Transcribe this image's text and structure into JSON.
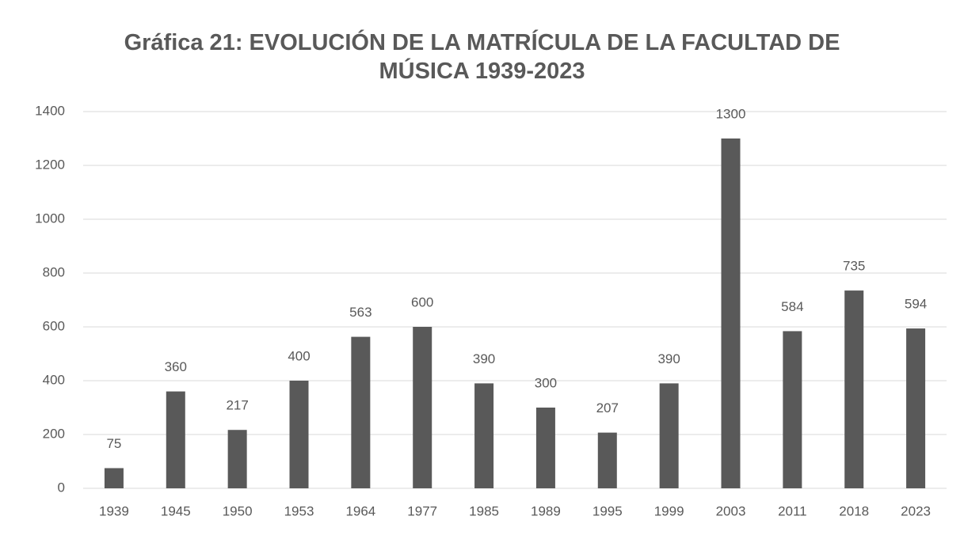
{
  "chart_data": {
    "type": "bar",
    "title": "Gráfica 21: EVOLUCIÓN DE LA MATRÍCULA DE LA FACULTAD DE MÚSICA 1939-2023",
    "categories": [
      "1939",
      "1945",
      "1950",
      "1953",
      "1964",
      "1977",
      "1985",
      "1989",
      "1995",
      "1999",
      "2003",
      "2011",
      "2018",
      "2023"
    ],
    "values": [
      75,
      360,
      217,
      400,
      563,
      600,
      390,
      300,
      207,
      390,
      1300,
      584,
      735,
      594
    ],
    "color": "#595959",
    "ylim": [
      0,
      1400
    ],
    "yticks": [
      0,
      200,
      400,
      600,
      800,
      1000,
      1200,
      1400
    ],
    "grid": true
  }
}
